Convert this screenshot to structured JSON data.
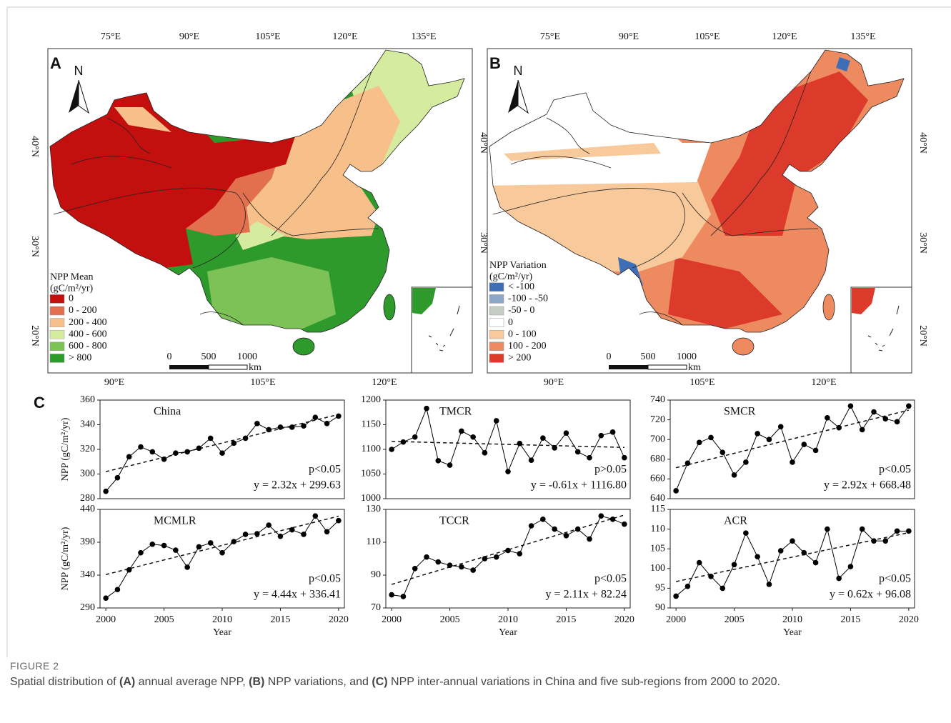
{
  "figure": {
    "panel_c": "C",
    "caption_title": "FIGURE 2",
    "caption_parts": [
      "Spatial distribution of ",
      "(A)",
      " annual average NPP, ",
      "(B)",
      " NPP variations, and ",
      "(C)",
      " NPP inter-annual variations in China and five sub-regions from 2000 to 2020."
    ]
  },
  "maps": [
    {
      "label": "A",
      "north": "N",
      "legend_title": "NPP Mean",
      "legend_unit": "(gC/m²/yr)",
      "legend": [
        {
          "label": "0",
          "color": "#c40f0f"
        },
        {
          "label": "0 - 200",
          "color": "#e2704f"
        },
        {
          "label": "200 - 400",
          "color": "#f7c08b"
        },
        {
          "label": "400 - 600",
          "color": "#d5eca0"
        },
        {
          "label": "600 - 800",
          "color": "#7cc257"
        },
        {
          "label": "> 800",
          "color": "#2f9a2c"
        }
      ],
      "top_lon": [
        "75°E",
        "90°E",
        "105°E",
        "120°E",
        "135°E"
      ],
      "bottom_lon": [
        "90°E",
        "105°E",
        "120°E"
      ],
      "left_lat": [
        "40°N",
        "30°N",
        "20°N"
      ],
      "right_lat": [
        "40°N",
        "30°N"
      ],
      "scale": [
        "0",
        "500",
        "1000"
      ],
      "scale_unit": "km"
    },
    {
      "label": "B",
      "north": "N",
      "legend_title": "NPP Variation",
      "legend_unit": "(gC/m²/yr)",
      "legend": [
        {
          "label": "< -100",
          "color": "#3e6fb6"
        },
        {
          "label": "-100 - -50",
          "color": "#8da7c8"
        },
        {
          "label": "-50 - 0",
          "color": "#c3cdc2"
        },
        {
          "label": "0",
          "color": "#ffffff"
        },
        {
          "label": "0 - 100",
          "color": "#f8c99a"
        },
        {
          "label": "100 - 200",
          "color": "#ed8a5f"
        },
        {
          "label": "> 200",
          "color": "#dc3b2b"
        }
      ],
      "top_lon": [
        "75°E",
        "90°E",
        "105°E",
        "120°E",
        "135°E"
      ],
      "bottom_lon": [
        "90°E",
        "105°E",
        "120°E"
      ],
      "left_lat": [],
      "right_lat": [
        "40°N",
        "30°N",
        "20°N"
      ],
      "scale": [
        "0",
        "500",
        "1000"
      ],
      "scale_unit": "km"
    }
  ],
  "chart_data": [
    {
      "type": "line",
      "title": "China",
      "color": "#000000",
      "ylabel": "NPP (gC/m²/yr)",
      "x": [
        2000,
        2001,
        2002,
        2003,
        2004,
        2005,
        2006,
        2007,
        2008,
        2009,
        2010,
        2011,
        2012,
        2013,
        2014,
        2015,
        2016,
        2017,
        2018,
        2019,
        2020
      ],
      "values": [
        286,
        297,
        314,
        322,
        318,
        312,
        317,
        318,
        321,
        329,
        317,
        325,
        329,
        341,
        336,
        338,
        338,
        339,
        346,
        341,
        347
      ],
      "xlim": [
        1999.5,
        2020.5
      ],
      "ylim": [
        280,
        360
      ],
      "yticks": [
        280,
        300,
        320,
        340,
        360
      ],
      "p_label": "p<0.05",
      "trend": {
        "label": "y = 2.32x + 299.63",
        "x": [
          2000,
          2020
        ],
        "values": [
          301.95,
          348.35
        ]
      }
    },
    {
      "type": "line",
      "title": "TMCR",
      "color": "#000000",
      "x": [
        2000,
        2001,
        2002,
        2003,
        2004,
        2005,
        2006,
        2007,
        2008,
        2009,
        2010,
        2011,
        2012,
        2013,
        2014,
        2015,
        2016,
        2017,
        2018,
        2019,
        2020
      ],
      "values": [
        1100,
        1115,
        1125,
        1183,
        1077,
        1068,
        1137,
        1125,
        1093,
        1158,
        1055,
        1112,
        1078,
        1123,
        1103,
        1133,
        1095,
        1083,
        1128,
        1135,
        1083
      ],
      "xlim": [
        1999.5,
        2020.5
      ],
      "ylim": [
        1000,
        1200
      ],
      "yticks": [
        1000,
        1050,
        1100,
        1150,
        1200
      ],
      "p_label": "p>0.05",
      "trend": {
        "label": "y = -0.61x + 1116.80",
        "x": [
          2000,
          2020
        ],
        "values": [
          1116.19,
          1103.99
        ]
      }
    },
    {
      "type": "line",
      "title": "SMCR",
      "color": "#000000",
      "x": [
        2000,
        2001,
        2002,
        2003,
        2004,
        2005,
        2006,
        2007,
        2008,
        2009,
        2010,
        2011,
        2012,
        2013,
        2014,
        2015,
        2016,
        2017,
        2018,
        2019,
        2020
      ],
      "values": [
        648,
        676,
        697,
        702,
        687,
        664,
        677,
        706,
        700,
        713,
        677,
        695,
        689,
        722,
        712,
        734,
        710,
        728,
        721,
        718,
        734
      ],
      "xlim": [
        1999.5,
        2020.5
      ],
      "ylim": [
        640,
        740
      ],
      "yticks": [
        640,
        660,
        680,
        700,
        720,
        740
      ],
      "p_label": "p<0.05",
      "trend": {
        "label": "y = 2.92x + 668.48",
        "x": [
          2000,
          2020
        ],
        "values": [
          671.4,
          729.8
        ]
      }
    },
    {
      "type": "line",
      "title": "MCMLR",
      "color": "#000000",
      "ylabel": "NPP (gC/m²/yr)",
      "xlabel": "Year",
      "x": [
        2000,
        2001,
        2002,
        2003,
        2004,
        2005,
        2006,
        2007,
        2008,
        2009,
        2010,
        2011,
        2012,
        2013,
        2014,
        2015,
        2016,
        2017,
        2018,
        2019,
        2020
      ],
      "values": [
        305,
        318,
        348,
        374,
        387,
        385,
        378,
        352,
        383,
        389,
        374,
        391,
        402,
        403,
        416,
        399,
        409,
        402,
        430,
        406,
        423
      ],
      "xlim": [
        1999.5,
        2020.5
      ],
      "ylim": [
        290,
        440
      ],
      "yticks": [
        290,
        340,
        390,
        440
      ],
      "xticks": [
        2000,
        2005,
        2010,
        2015,
        2020
      ],
      "p_label": "p<0.05",
      "trend": {
        "label": "y = 4.44x + 336.41",
        "x": [
          2000,
          2020
        ],
        "values": [
          340.85,
          429.65
        ]
      }
    },
    {
      "type": "line",
      "title": "TCCR",
      "color": "#000000",
      "xlabel": "Year",
      "x": [
        2000,
        2001,
        2002,
        2003,
        2004,
        2005,
        2006,
        2007,
        2008,
        2009,
        2010,
        2011,
        2012,
        2013,
        2014,
        2015,
        2016,
        2017,
        2018,
        2019,
        2020
      ],
      "values": [
        78,
        77,
        94,
        101,
        98,
        96,
        95,
        93,
        100,
        101,
        105,
        103,
        120,
        124,
        118,
        114,
        118,
        112,
        126,
        124,
        121
      ],
      "xlim": [
        1999.5,
        2020.5
      ],
      "ylim": [
        70,
        130
      ],
      "yticks": [
        70,
        90,
        110,
        130
      ],
      "xticks": [
        2000,
        2005,
        2010,
        2015,
        2020
      ],
      "p_label": "p<0.05",
      "trend": {
        "label": "y = 2.11x + 82.24",
        "x": [
          2000,
          2020
        ],
        "values": [
          84.35,
          126.55
        ]
      }
    },
    {
      "type": "line",
      "title": "ACR",
      "color": "#000000",
      "xlabel": "Year",
      "x": [
        2000,
        2001,
        2002,
        2003,
        2004,
        2005,
        2006,
        2007,
        2008,
        2009,
        2010,
        2011,
        2012,
        2013,
        2014,
        2015,
        2016,
        2017,
        2018,
        2019,
        2020
      ],
      "values": [
        93,
        95.5,
        101.5,
        98,
        95,
        101,
        109,
        103,
        96,
        104.5,
        107,
        104,
        101.5,
        110,
        97.5,
        100.5,
        110,
        107,
        107,
        109.5,
        109.5
      ],
      "xlim": [
        1999.5,
        2020.5
      ],
      "ylim": [
        90,
        115
      ],
      "yticks": [
        90,
        95,
        100,
        105,
        110,
        115
      ],
      "xticks": [
        2000,
        2005,
        2010,
        2015,
        2020
      ],
      "p_label": "p<0.05",
      "trend": {
        "label": "y = 0.62x + 96.08",
        "x": [
          2000,
          2020
        ],
        "values": [
          96.7,
          109.1
        ]
      }
    }
  ]
}
